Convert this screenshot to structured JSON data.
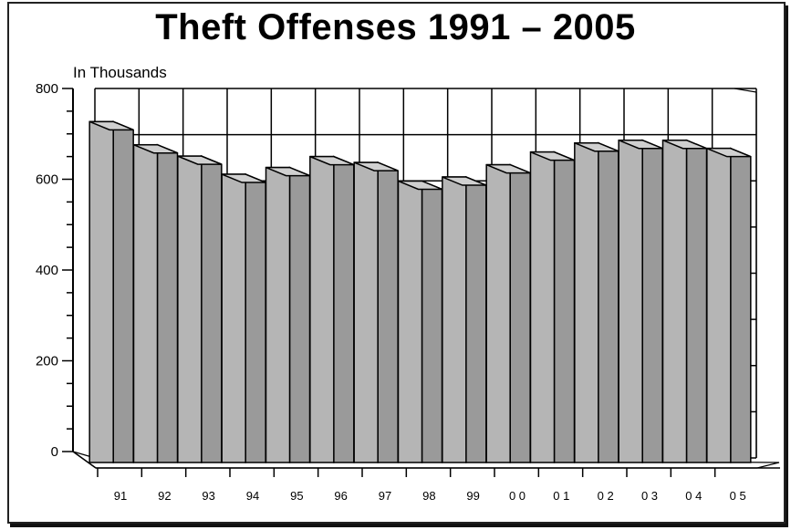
{
  "chart_data": {
    "type": "bar",
    "title": "Theft Offenses 1991 – 2005",
    "unit_label": "In Thousands",
    "categories": [
      "91",
      "92",
      "93",
      "94",
      "95",
      "96",
      "97",
      "98",
      "99",
      "0 0",
      "0 1",
      "0 2",
      "0 3",
      "0 4",
      "0 5"
    ],
    "values": [
      727,
      676,
      651,
      611,
      626,
      650,
      637,
      596,
      605,
      632,
      660,
      680,
      686,
      686,
      668
    ],
    "ylim": [
      0,
      800
    ],
    "yticks": [
      "0",
      "200",
      "400",
      "600",
      "800"
    ],
    "grid": true,
    "bar_color": "#b5b5b5",
    "style": "3d"
  }
}
